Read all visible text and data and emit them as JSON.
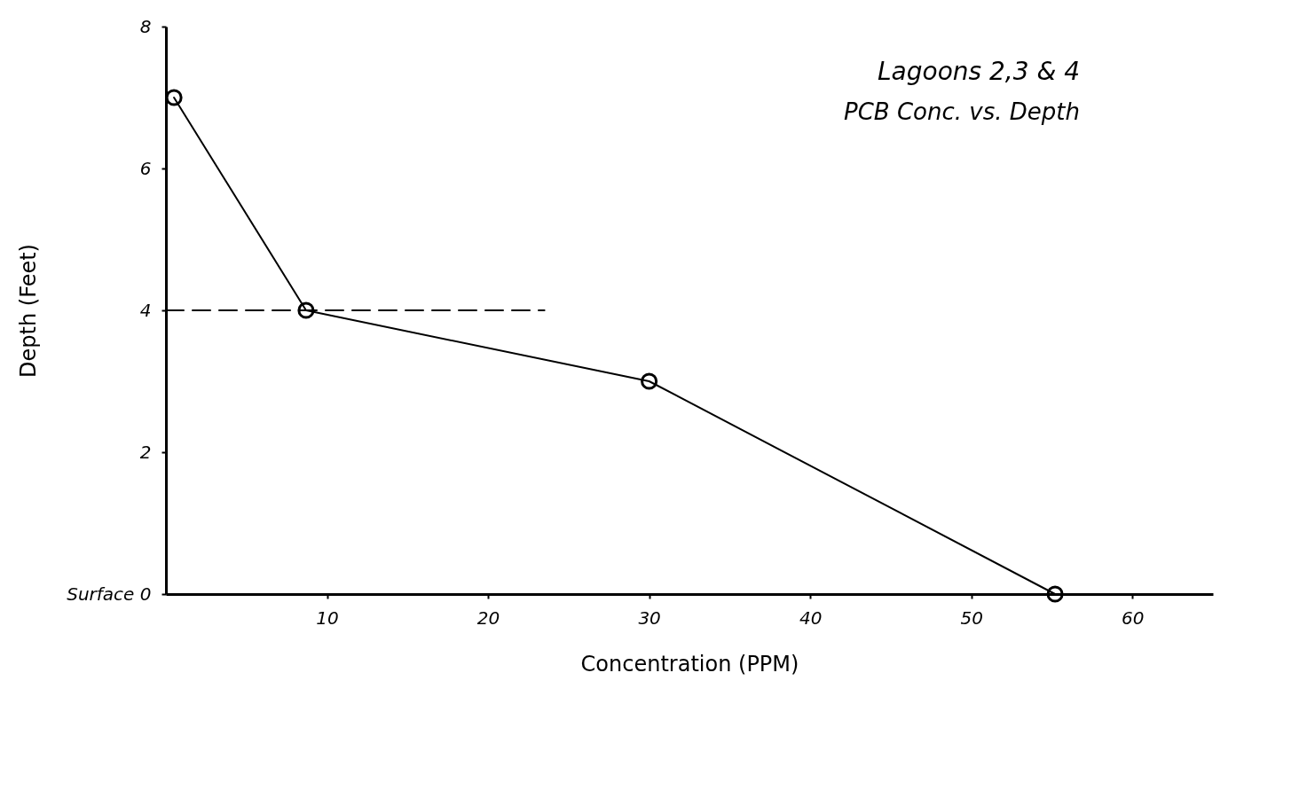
{
  "chart_data": {
    "type": "line",
    "title": "Lagoons 2,3 & 4",
    "subtitle": "PCB Conc. vs. Depth",
    "xlabel": "Concentration (PPM)",
    "ylabel": "Depth (Feet)",
    "xlim": [
      0,
      65
    ],
    "xticks": [
      10,
      20,
      30,
      40,
      50,
      60
    ],
    "ylim": [
      0,
      8
    ],
    "yticks": [
      {
        "value": 0,
        "label": "Surface 0"
      },
      2,
      4,
      6,
      8
    ],
    "grid": false,
    "marker": "circle",
    "line_style": "solid",
    "series": [
      {
        "color": "#000000",
        "x": [
          0.5,
          8.7,
          30,
          55.2
        ],
        "values": [
          7,
          4,
          3,
          0
        ]
      },
      {
        "color": "#000000",
        "x": [
          0,
          23.5
        ],
        "values": [
          4,
          4
        ],
        "marker": "none",
        "line_style": "dashed"
      }
    ]
  }
}
